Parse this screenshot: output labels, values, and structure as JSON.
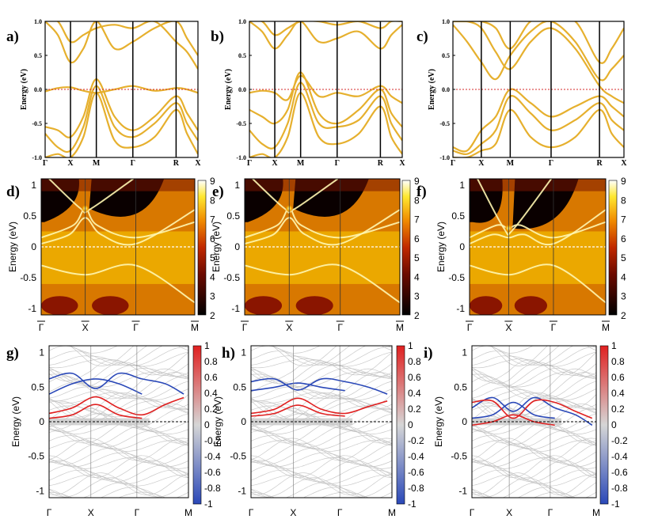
{
  "chart_data": [
    {
      "panel": "a)",
      "type": "line",
      "ylabel": "Energy (eV)",
      "ylim": [
        -1.0,
        1.0
      ],
      "yticks": [
        "1.0",
        "0.5",
        "0.0",
        "-0.5",
        "-1.0"
      ],
      "kpoints": [
        "Γ",
        "X",
        "M",
        "Γ",
        "R",
        "X"
      ],
      "band_color": "#E6B02E",
      "fermi_level": 0.0,
      "fermi_color": "#d62828",
      "series": [
        {
          "x": [
            0,
            0.5,
            1,
            1.5,
            2,
            2.5,
            3,
            3.5,
            4,
            4.5,
            5
          ],
          "values": [
            -0.03,
            0.02,
            0.03,
            -0.02,
            -0.05,
            0.0,
            0.05,
            -0.02,
            0.02,
            0.0,
            -0.05
          ]
        },
        {
          "x": [
            0,
            0.5,
            1,
            1.5,
            2,
            2.5,
            3,
            3.5,
            4,
            4.5,
            5
          ],
          "values": [
            -0.55,
            -0.6,
            -0.7,
            -0.4,
            0.15,
            -0.4,
            -0.6,
            -0.4,
            -0.1,
            -0.35,
            -0.6
          ]
        },
        {
          "x": [
            0,
            0.5,
            1,
            1.5,
            2,
            2.5,
            3,
            3.5,
            4,
            4.5,
            5
          ],
          "values": [
            -0.65,
            -0.85,
            -0.9,
            -0.55,
            0.05,
            -0.55,
            -0.7,
            -0.5,
            -0.2,
            -0.5,
            -0.75
          ]
        },
        {
          "x": [
            0,
            0.5,
            1,
            1.5,
            2,
            2.5,
            3,
            3.5,
            4,
            4.5,
            5
          ],
          "values": [
            -1.0,
            -0.95,
            -1.0,
            -0.7,
            -0.05,
            -0.75,
            -0.85,
            -0.7,
            -0.3,
            -0.65,
            -0.95
          ]
        },
        {
          "x": [
            0,
            0.5,
            1,
            1.5,
            2,
            2.5,
            3,
            3.5,
            4,
            4.5,
            5
          ],
          "values": [
            1.0,
            0.8,
            0.4,
            0.6,
            1.0,
            0.6,
            0.7,
            0.9,
            1.0,
            0.75,
            0.5
          ]
        },
        {
          "x": [
            0,
            0.5,
            1,
            1.5,
            2,
            2.5,
            3,
            3.5,
            4,
            4.5,
            5
          ],
          "values": [
            1.0,
            1.0,
            0.7,
            0.8,
            0.9,
            0.95,
            0.9,
            1.0,
            0.7,
            0.55,
            0.3
          ]
        }
      ]
    },
    {
      "panel": "b)",
      "type": "line",
      "ylabel": "Energy (eV)",
      "ylim": [
        -1.0,
        1.0
      ],
      "yticks": [
        "1.0",
        "0.5",
        "0.0",
        "-0.5",
        "-1.0"
      ],
      "kpoints": [
        "Γ",
        "X",
        "M",
        "Γ",
        "R",
        "X"
      ],
      "band_color": "#E6B02E",
      "fermi_level": 0.0,
      "fermi_color": "#d62828",
      "series": [
        {
          "x": [
            0,
            0.5,
            1,
            1.5,
            2,
            2.5,
            3,
            3.5,
            4,
            4.5,
            5
          ],
          "values": [
            -0.05,
            -0.02,
            -0.05,
            -0.15,
            0.2,
            -0.1,
            -0.05,
            -0.1,
            0.05,
            -0.1,
            -0.2
          ]
        },
        {
          "x": [
            0,
            0.5,
            1,
            1.5,
            2,
            2.5,
            3,
            3.5,
            4,
            4.5,
            5
          ],
          "values": [
            -0.3,
            -0.4,
            -0.5,
            -0.3,
            0.25,
            -0.35,
            -0.5,
            -0.3,
            0.0,
            -0.35,
            -0.55
          ]
        },
        {
          "x": [
            0,
            0.5,
            1,
            1.5,
            2,
            2.5,
            3,
            3.5,
            4,
            4.5,
            5
          ],
          "values": [
            -0.6,
            -0.8,
            -0.85,
            -0.5,
            0.1,
            -0.5,
            -0.55,
            -0.45,
            -0.1,
            -0.5,
            -0.75
          ]
        },
        {
          "x": [
            0,
            0.5,
            1,
            1.5,
            2,
            2.5,
            3,
            3.5,
            4,
            4.5,
            5
          ],
          "values": [
            -1.0,
            -0.95,
            -1.0,
            -0.7,
            -0.05,
            -0.7,
            -0.8,
            -0.65,
            -0.25,
            -0.7,
            -0.95
          ]
        },
        {
          "x": [
            0,
            0.5,
            1,
            1.5,
            2,
            2.5,
            3,
            3.5,
            4,
            4.5,
            5
          ],
          "values": [
            1.0,
            0.85,
            0.6,
            0.8,
            1.0,
            0.7,
            0.75,
            0.85,
            0.6,
            0.8,
            0.95
          ]
        },
        {
          "x": [
            0,
            0.5,
            1,
            1.5,
            2,
            2.5,
            3,
            3.5,
            4,
            4.5,
            5
          ],
          "values": [
            1.0,
            1.0,
            0.8,
            0.9,
            1.0,
            1.0,
            0.95,
            1.0,
            0.9,
            1.0,
            1.0
          ]
        }
      ]
    },
    {
      "panel": "c)",
      "type": "line",
      "ylabel": "Energy (eV)",
      "ylim": [
        -1.0,
        1.0
      ],
      "yticks": [
        "1.0",
        "0.5",
        "0.0",
        "-0.5",
        "-1.0"
      ],
      "kpoints": [
        "Γ",
        "X",
        "M",
        "Γ",
        "R",
        "X"
      ],
      "band_color": "#E6B02E",
      "fermi_level": 0.0,
      "fermi_color": "#d62828",
      "series": [
        {
          "x": [
            0,
            0.5,
            1,
            1.5,
            2,
            2.5,
            3,
            3.5,
            4,
            4.5,
            5
          ],
          "values": [
            -0.85,
            -0.9,
            -0.6,
            -0.4,
            0.0,
            -0.2,
            -0.4,
            -0.25,
            -0.1,
            -0.25,
            -0.4
          ]
        },
        {
          "x": [
            0,
            0.5,
            1,
            1.5,
            2,
            2.5,
            3,
            3.5,
            4,
            4.5,
            5
          ],
          "values": [
            -0.9,
            -0.95,
            -0.8,
            -0.6,
            -0.1,
            -0.35,
            -0.6,
            -0.45,
            -0.2,
            -0.45,
            -0.6
          ]
        },
        {
          "x": [
            0,
            0.5,
            1,
            1.5,
            2,
            2.5,
            3,
            3.5,
            4,
            4.5,
            5
          ],
          "values": [
            -1.0,
            -1.0,
            -0.9,
            -0.8,
            -0.3,
            -0.7,
            -0.85,
            -0.7,
            -0.3,
            -0.65,
            -0.85
          ]
        },
        {
          "x": [
            0,
            0.5,
            1,
            1.5,
            2,
            2.5,
            3,
            3.5,
            4,
            4.5,
            5
          ],
          "values": [
            0.95,
            0.7,
            0.4,
            0.15,
            0.5,
            0.85,
            1.0,
            0.7,
            0.15,
            0.3,
            0.5
          ]
        },
        {
          "x": [
            0,
            0.5,
            1,
            1.5,
            2,
            2.5,
            3,
            3.5,
            4,
            4.5,
            5
          ],
          "values": [
            1.0,
            1.0,
            0.9,
            0.55,
            0.3,
            0.7,
            0.9,
            0.6,
            0.05,
            -0.1,
            -0.2
          ]
        },
        {
          "x": [
            0,
            0.5,
            1,
            1.5,
            2,
            2.5,
            3,
            3.5,
            4,
            4.5,
            5
          ],
          "values": [
            1.0,
            1.0,
            1.0,
            0.9,
            0.6,
            1.0,
            1.0,
            1.0,
            0.4,
            0.6,
            0.9
          ]
        }
      ]
    },
    {
      "panel": "d)",
      "type": "heatmap",
      "ylabel": "Energy (eV)",
      "ylim": [
        -1.1,
        1.1
      ],
      "yticks": [
        "1",
        "0.5",
        "0",
        "-0.5",
        "-1"
      ],
      "kpoints": [
        "Γ",
        "X",
        "Γ",
        "M"
      ],
      "colorbar": {
        "min": 2,
        "max": 9,
        "ticks": [
          "9",
          "8",
          "7",
          "6",
          "5",
          "4",
          "3",
          "2"
        ]
      },
      "dirac_energy": 0.62,
      "gap_top": 0.9
    },
    {
      "panel": "e)",
      "type": "heatmap",
      "ylabel": "Energy (eV)",
      "ylim": [
        -1.1,
        1.1
      ],
      "yticks": [
        "1",
        "0.5",
        "0",
        "-0.5",
        "-1"
      ],
      "kpoints": [
        "Γ",
        "X",
        "Γ",
        "M"
      ],
      "colorbar": {
        "min": 2,
        "max": 9,
        "ticks": [
          "9",
          "8",
          "7",
          "6",
          "5",
          "4",
          "3",
          "2"
        ]
      },
      "dirac_energy": 0.62,
      "gap_top": 0.9
    },
    {
      "panel": "f)",
      "type": "heatmap",
      "ylabel": "Energy (eV)",
      "ylim": [
        -1.1,
        1.1
      ],
      "yticks": [
        "1",
        "0.5",
        "0",
        "-0.5",
        "-1"
      ],
      "kpoints": [
        "Γ",
        "X",
        "Γ",
        "M"
      ],
      "colorbar": {
        "min": 2,
        "max": 9,
        "ticks": [
          "9",
          "8",
          "7",
          "6",
          "5",
          "4",
          "3",
          "2"
        ]
      },
      "dirac_energy": 0.3,
      "gap_top": 0.9
    },
    {
      "panel": "g)",
      "type": "line",
      "ylabel": "Energy (eV)",
      "ylim": [
        -1.1,
        1.1
      ],
      "yticks": [
        "1",
        "0.5",
        "0",
        "-0.5",
        "-1"
      ],
      "kpoints": [
        "Γ",
        "X",
        "Γ",
        "M"
      ],
      "colorbar": {
        "min": -1,
        "max": 1,
        "ticks": [
          "1",
          "0.8",
          "0.6",
          "0.4",
          "0.2",
          "0",
          "-0.2",
          "-0.4",
          "-0.6",
          "-0.8",
          "-1"
        ]
      },
      "surface_bands": [
        {
          "spin": "up",
          "x": [
            0,
            0.5,
            1,
            1.5,
            2,
            2.5,
            2.9
          ],
          "values": [
            0.62,
            0.7,
            0.48,
            0.7,
            0.62,
            0.55,
            0.4
          ]
        },
        {
          "spin": "up",
          "x": [
            0,
            0.5,
            1,
            1.5,
            2
          ],
          "values": [
            0.4,
            0.55,
            0.62,
            0.55,
            0.4
          ]
        },
        {
          "spin": "down",
          "x": [
            0,
            0.5,
            1,
            1.5,
            2,
            2.5,
            2.9
          ],
          "values": [
            0.12,
            0.2,
            0.36,
            0.2,
            0.1,
            0.25,
            0.35
          ]
        },
        {
          "spin": "down",
          "x": [
            0,
            0.5,
            1,
            1.5,
            2
          ],
          "values": [
            0.05,
            0.1,
            0.25,
            0.1,
            0.05
          ]
        }
      ]
    },
    {
      "panel": "h)",
      "type": "line",
      "ylabel": "Energy (eV)",
      "ylim": [
        -1.1,
        1.1
      ],
      "yticks": [
        "1",
        "0.5",
        "0",
        "-0.5",
        "-1"
      ],
      "kpoints": [
        "Γ",
        "X",
        "Γ",
        "M"
      ],
      "colorbar": {
        "min": -1,
        "max": 1,
        "ticks": [
          "1",
          "0.8",
          "0.6",
          "0.4",
          "0.2",
          "0",
          "-0.2",
          "-0.4",
          "-0.6",
          "-0.8",
          "-1"
        ]
      },
      "surface_bands": [
        {
          "spin": "up",
          "x": [
            0,
            0.5,
            1,
            1.5,
            2,
            2.5,
            2.9
          ],
          "values": [
            0.58,
            0.62,
            0.46,
            0.62,
            0.58,
            0.5,
            0.4
          ]
        },
        {
          "spin": "up",
          "x": [
            0,
            0.5,
            1,
            1.5,
            2
          ],
          "values": [
            0.45,
            0.5,
            0.56,
            0.5,
            0.45
          ]
        },
        {
          "spin": "down",
          "x": [
            0,
            0.5,
            1,
            1.5,
            2,
            2.5,
            2.9
          ],
          "values": [
            0.12,
            0.18,
            0.34,
            0.18,
            0.12,
            0.22,
            0.3
          ]
        },
        {
          "spin": "down",
          "x": [
            0,
            0.5,
            1,
            1.5,
            2
          ],
          "values": [
            0.08,
            0.12,
            0.24,
            0.12,
            0.08
          ]
        }
      ]
    },
    {
      "panel": "i)",
      "type": "line",
      "ylabel": "Energy (eV)",
      "ylim": [
        -1.1,
        1.1
      ],
      "yticks": [
        "1",
        "0.5",
        "0",
        "-0.5",
        "-1"
      ],
      "kpoints": [
        "Γ",
        "X",
        "Γ",
        "M"
      ],
      "colorbar": {
        "min": -1,
        "max": 1,
        "ticks": [
          "1",
          "0.8",
          "0.6",
          "0.4",
          "0.2",
          "0",
          "-0.2",
          "-0.4",
          "-0.6",
          "-0.8",
          "-1"
        ]
      },
      "surface_bands": [
        {
          "spin": "up",
          "x": [
            0,
            0.5,
            1,
            1.5,
            2,
            2.5,
            2.9
          ],
          "values": [
            0.2,
            0.35,
            0.15,
            0.35,
            0.2,
            0.1,
            -0.05
          ]
        },
        {
          "spin": "up",
          "x": [
            0,
            0.5,
            1,
            1.5,
            2
          ],
          "values": [
            0.05,
            0.1,
            0.28,
            0.1,
            0.05
          ]
        },
        {
          "spin": "down",
          "x": [
            0,
            0.5,
            1,
            1.5,
            2,
            2.5,
            2.9
          ],
          "values": [
            0.28,
            0.3,
            0.05,
            0.3,
            0.28,
            0.15,
            0.05
          ]
        },
        {
          "spin": "down",
          "x": [
            0,
            0.5,
            1,
            1.5,
            2
          ],
          "values": [
            -0.05,
            0.0,
            0.1,
            0.0,
            -0.05
          ]
        }
      ]
    }
  ]
}
